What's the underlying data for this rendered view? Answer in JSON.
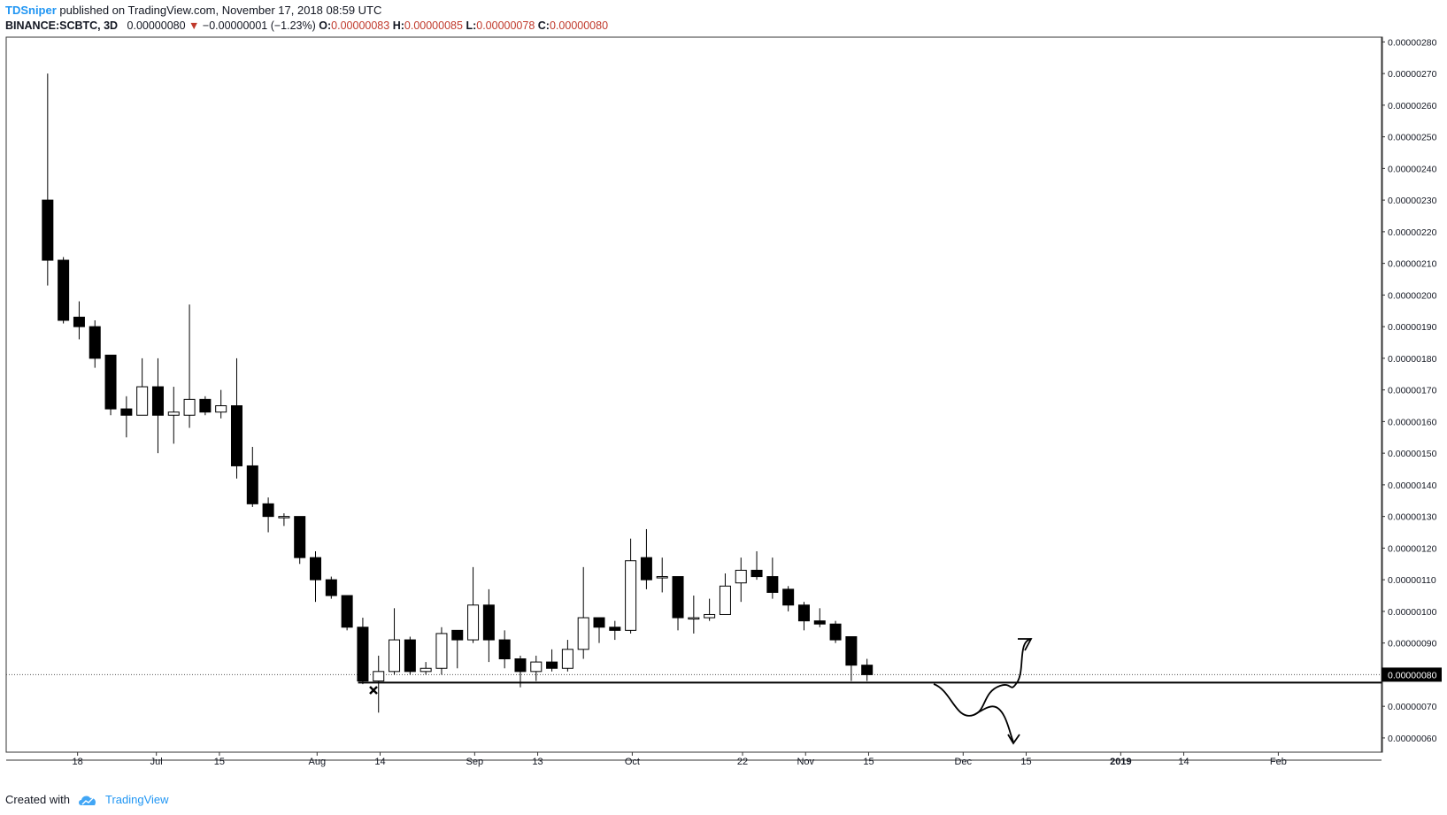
{
  "header": {
    "author": "TDSniper",
    "published": " published on TradingView.com, November 17, 2018 08:59 UTC",
    "symbol": "BINANCE:SCBTC, 3D",
    "last": "0.00000080",
    "arrow": "▼",
    "change": "−0.00000001 (−1.23%)",
    "o_label": "O:",
    "o_value": "0.00000083",
    "h_label": "H:",
    "h_value": "0.00000085",
    "l_label": "L:",
    "l_value": "0.00000078",
    "c_label": "C:",
    "c_value": "0.00000080"
  },
  "footer": {
    "created_with": "Created with",
    "brand": "TradingView"
  },
  "colors": {
    "accent": "#2196f3",
    "down": "#c0392b",
    "candle_down": "#000000",
    "candle_up": "#ffffff"
  },
  "chart_data": {
    "type": "candlestick",
    "ylim": [
      5.55e-07,
      2.815e-06
    ],
    "xlim": [
      0,
      82
    ],
    "y_ticks": [
      "0.00000060",
      "0.00000070",
      "0.00000080",
      "0.00000090",
      "0.00000100",
      "0.00000110",
      "0.00000120",
      "0.00000130",
      "0.00000140",
      "0.00000150",
      "0.00000160",
      "0.00000170",
      "0.00000180",
      "0.00000190",
      "0.00000200",
      "0.00000210",
      "0.00000220",
      "0.00000230",
      "0.00000240",
      "0.00000250",
      "0.00000260",
      "0.00000270",
      "0.00000280"
    ],
    "x_ticks": [
      {
        "label": "18",
        "x": 3.8
      },
      {
        "label": "Jul",
        "x": 8.8
      },
      {
        "label": "15",
        "x": 12.8
      },
      {
        "label": "Aug",
        "x": 19.0
      },
      {
        "label": "14",
        "x": 23.0
      },
      {
        "label": "Sep",
        "x": 29.0
      },
      {
        "label": "13",
        "x": 33.0
      },
      {
        "label": "Oct",
        "x": 39.0
      },
      {
        "label": "22",
        "x": 46.0
      },
      {
        "label": "Nov",
        "x": 50.0
      },
      {
        "label": "15",
        "x": 54.0
      },
      {
        "label": "Dec",
        "x": 60.0
      },
      {
        "label": "15",
        "x": 64.0
      },
      {
        "label": "2019",
        "x": 70.0,
        "bold": true
      },
      {
        "label": "14",
        "x": 74.0
      },
      {
        "label": "Feb",
        "x": 80.0
      }
    ],
    "last_price": "0.00000080",
    "last_price_value": 8e-07,
    "support_level": 7.75e-07,
    "candles": [
      {
        "x": 1.9,
        "o": 2.3,
        "h": 2.7,
        "l": 2.03,
        "c": 2.11
      },
      {
        "x": 2.9,
        "o": 2.11,
        "h": 2.12,
        "l": 1.91,
        "c": 1.92
      },
      {
        "x": 3.9,
        "o": 1.93,
        "h": 1.98,
        "l": 1.86,
        "c": 1.9
      },
      {
        "x": 4.9,
        "o": 1.9,
        "h": 1.92,
        "l": 1.77,
        "c": 1.8
      },
      {
        "x": 5.9,
        "o": 1.81,
        "h": 1.81,
        "l": 1.62,
        "c": 1.64
      },
      {
        "x": 6.9,
        "o": 1.64,
        "h": 1.68,
        "l": 1.55,
        "c": 1.62
      },
      {
        "x": 7.9,
        "o": 1.62,
        "h": 1.8,
        "l": 1.62,
        "c": 1.71
      },
      {
        "x": 8.9,
        "o": 1.71,
        "h": 1.8,
        "l": 1.5,
        "c": 1.62
      },
      {
        "x": 9.9,
        "o": 1.62,
        "h": 1.71,
        "l": 1.53,
        "c": 1.63
      },
      {
        "x": 10.9,
        "o": 1.62,
        "h": 1.97,
        "l": 1.58,
        "c": 1.67
      },
      {
        "x": 11.9,
        "o": 1.67,
        "h": 1.68,
        "l": 1.62,
        "c": 1.63
      },
      {
        "x": 12.9,
        "o": 1.63,
        "h": 1.7,
        "l": 1.61,
        "c": 1.65
      },
      {
        "x": 13.9,
        "o": 1.65,
        "h": 1.8,
        "l": 1.42,
        "c": 1.46
      },
      {
        "x": 14.9,
        "o": 1.46,
        "h": 1.52,
        "l": 1.33,
        "c": 1.34
      },
      {
        "x": 15.9,
        "o": 1.34,
        "h": 1.36,
        "l": 1.25,
        "c": 1.3
      },
      {
        "x": 16.9,
        "o": 1.3,
        "h": 1.31,
        "l": 1.27,
        "c": 1.3
      },
      {
        "x": 17.9,
        "o": 1.3,
        "h": 1.3,
        "l": 1.15,
        "c": 1.17
      },
      {
        "x": 18.9,
        "o": 1.17,
        "h": 1.19,
        "l": 1.03,
        "c": 1.1
      },
      {
        "x": 19.9,
        "o": 1.1,
        "h": 1.11,
        "l": 1.04,
        "c": 1.05
      },
      {
        "x": 20.9,
        "o": 1.05,
        "h": 1.05,
        "l": 0.94,
        "c": 0.95
      },
      {
        "x": 21.9,
        "o": 0.95,
        "h": 0.98,
        "l": 0.77,
        "c": 0.78
      },
      {
        "x": 22.9,
        "o": 0.78,
        "h": 0.86,
        "l": 0.68,
        "c": 0.81
      },
      {
        "x": 23.9,
        "o": 0.81,
        "h": 1.01,
        "l": 0.8,
        "c": 0.91
      },
      {
        "x": 24.9,
        "o": 0.91,
        "h": 0.92,
        "l": 0.8,
        "c": 0.81
      },
      {
        "x": 25.9,
        "o": 0.81,
        "h": 0.84,
        "l": 0.8,
        "c": 0.82
      },
      {
        "x": 26.9,
        "o": 0.82,
        "h": 0.95,
        "l": 0.8,
        "c": 0.93
      },
      {
        "x": 27.9,
        "o": 0.94,
        "h": 0.94,
        "l": 0.82,
        "c": 0.91
      },
      {
        "x": 28.9,
        "o": 0.91,
        "h": 1.14,
        "l": 0.9,
        "c": 1.02
      },
      {
        "x": 29.9,
        "o": 1.02,
        "h": 1.07,
        "l": 0.84,
        "c": 0.91
      },
      {
        "x": 30.9,
        "o": 0.91,
        "h": 0.94,
        "l": 0.82,
        "c": 0.85
      },
      {
        "x": 31.9,
        "o": 0.85,
        "h": 0.86,
        "l": 0.76,
        "c": 0.81
      },
      {
        "x": 32.9,
        "o": 0.81,
        "h": 0.86,
        "l": 0.78,
        "c": 0.84
      },
      {
        "x": 33.9,
        "o": 0.84,
        "h": 0.88,
        "l": 0.81,
        "c": 0.82
      },
      {
        "x": 34.9,
        "o": 0.82,
        "h": 0.91,
        "l": 0.81,
        "c": 0.88
      },
      {
        "x": 35.9,
        "o": 0.88,
        "h": 1.14,
        "l": 0.85,
        "c": 0.98
      },
      {
        "x": 36.9,
        "o": 0.98,
        "h": 0.98,
        "l": 0.9,
        "c": 0.95
      },
      {
        "x": 37.9,
        "o": 0.95,
        "h": 0.97,
        "l": 0.91,
        "c": 0.94
      },
      {
        "x": 38.9,
        "o": 0.94,
        "h": 1.23,
        "l": 0.93,
        "c": 1.16
      },
      {
        "x": 39.9,
        "o": 1.17,
        "h": 1.26,
        "l": 1.07,
        "c": 1.1
      },
      {
        "x": 40.9,
        "o": 1.11,
        "h": 1.17,
        "l": 1.06,
        "c": 1.11
      },
      {
        "x": 41.9,
        "o": 1.11,
        "h": 1.11,
        "l": 0.94,
        "c": 0.98
      },
      {
        "x": 42.9,
        "o": 0.98,
        "h": 1.05,
        "l": 0.93,
        "c": 0.98
      },
      {
        "x": 43.9,
        "o": 0.98,
        "h": 1.04,
        "l": 0.97,
        "c": 0.99
      },
      {
        "x": 44.9,
        "o": 0.99,
        "h": 1.12,
        "l": 0.99,
        "c": 1.08
      },
      {
        "x": 45.9,
        "o": 1.09,
        "h": 1.17,
        "l": 1.03,
        "c": 1.13
      },
      {
        "x": 46.9,
        "o": 1.13,
        "h": 1.19,
        "l": 1.1,
        "c": 1.11
      },
      {
        "x": 47.9,
        "o": 1.11,
        "h": 1.17,
        "l": 1.04,
        "c": 1.06
      },
      {
        "x": 48.9,
        "o": 1.07,
        "h": 1.08,
        "l": 1.0,
        "c": 1.02
      },
      {
        "x": 49.9,
        "o": 1.02,
        "h": 1.03,
        "l": 0.94,
        "c": 0.97
      },
      {
        "x": 50.9,
        "o": 0.97,
        "h": 1.01,
        "l": 0.95,
        "c": 0.96
      },
      {
        "x": 51.9,
        "o": 0.96,
        "h": 0.97,
        "l": 0.9,
        "c": 0.91
      },
      {
        "x": 52.9,
        "o": 0.92,
        "h": 0.92,
        "l": 0.78,
        "c": 0.83
      },
      {
        "x": 53.9,
        "o": 0.83,
        "h": 0.85,
        "l": 0.78,
        "c": 0.8
      }
    ]
  }
}
